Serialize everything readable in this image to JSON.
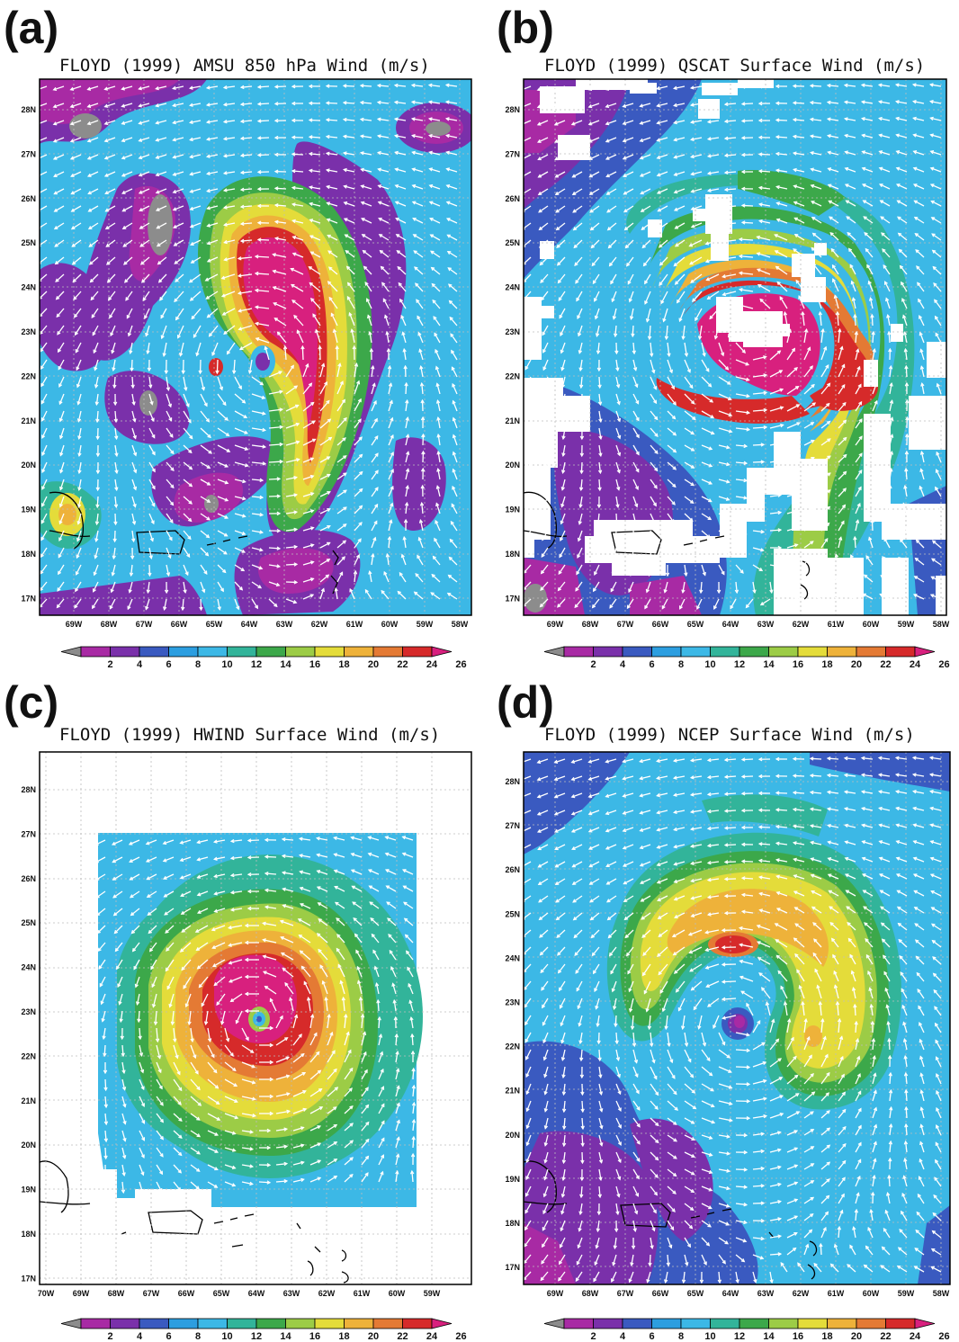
{
  "colors": {
    "levels": [
      "#8c8c8c",
      "#a82aa4",
      "#7a30aa",
      "#3a5ac0",
      "#2c9ee0",
      "#3cb8e6",
      "#32b49a",
      "#3ca84a",
      "#9ccc46",
      "#e4dc3a",
      "#eeb23a",
      "#e47a34",
      "#d62a2a",
      "#d8207e"
    ],
    "white": "#ffffff",
    "grid": "#bdbdbd"
  },
  "colorbar_labels": [
    "2",
    "4",
    "6",
    "8",
    "10",
    "12",
    "14",
    "16",
    "18",
    "20",
    "22",
    "24",
    "26"
  ],
  "panels": [
    {
      "id": "a",
      "letter": "(a)",
      "title": "FLOYD (1999) AMSU 850 hPa Wind (m/s)",
      "lat_labels": [
        "28N",
        "27N",
        "26N",
        "25N",
        "24N",
        "23N",
        "22N",
        "21N",
        "20N",
        "19N",
        "18N",
        "17N"
      ],
      "lon_labels": [
        "69W",
        "68W",
        "67W",
        "66W",
        "65W",
        "64W",
        "63W",
        "62W",
        "61W",
        "60W",
        "59W",
        "58W"
      ]
    },
    {
      "id": "b",
      "letter": "(b)",
      "title": "FLOYD (1999) QSCAT Surface Wind (m/s)",
      "lat_labels": [
        "28N",
        "27N",
        "26N",
        "25N",
        "24N",
        "23N",
        "22N",
        "21N",
        "20N",
        "19N",
        "18N",
        "17N"
      ],
      "lon_labels": [
        "69W",
        "68W",
        "67W",
        "66W",
        "65W",
        "64W",
        "63W",
        "62W",
        "61W",
        "60W",
        "59W",
        "58W"
      ]
    },
    {
      "id": "c",
      "letter": "(c)",
      "title": "FLOYD (1999) HWIND Surface Wind (m/s)",
      "lat_labels": [
        "28N",
        "27N",
        "26N",
        "25N",
        "24N",
        "23N",
        "22N",
        "21N",
        "20N",
        "19N",
        "18N",
        "17N"
      ],
      "lon_labels": [
        "70W",
        "69W",
        "68W",
        "67W",
        "66W",
        "65W",
        "64W",
        "63W",
        "62W",
        "61W",
        "60W",
        "59W"
      ]
    },
    {
      "id": "d",
      "letter": "(d)",
      "title": "FLOYD (1999) NCEP Surface Wind (m/s)",
      "lat_labels": [
        "28N",
        "27N",
        "26N",
        "25N",
        "24N",
        "23N",
        "22N",
        "21N",
        "20N",
        "19N",
        "18N",
        "17N"
      ],
      "lon_labels": [
        "69W",
        "68W",
        "67W",
        "66W",
        "65W",
        "64W",
        "63W",
        "62W",
        "61W",
        "60W",
        "59W",
        "58W"
      ]
    }
  ]
}
